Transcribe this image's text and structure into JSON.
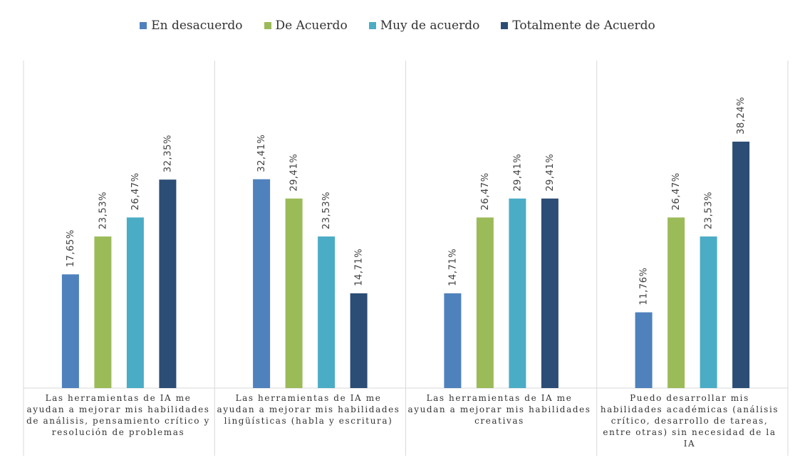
{
  "chart_data": {
    "type": "bar",
    "title": "",
    "xlabel": "",
    "ylabel": "",
    "ylim": [
      0,
      44
    ],
    "grid": false,
    "legend_position": "top",
    "categories": [
      "Las herramientas de IA me ayudan a mejorar mis habilidades de análisis, pensamiento crítico y resolución de problemas",
      "Las herramientas de IA me ayudan a mejorar mis habilidades lingüísticas (habla y escritura)",
      "Las herramientas de IA me ayudan a mejorar mis habilidades creativas",
      "Puedo desarrollar mis habilidades académicas (análisis crítico, desarrollo de tareas, entre otras) sin necesidad de la IA"
    ],
    "series": [
      {
        "name": "En desacuerdo",
        "color": "#4f81bd",
        "values": [
          17.65,
          32.41,
          14.71,
          11.76
        ],
        "labels": [
          "17,65%",
          "32,41%",
          "14,71%",
          "11,76%"
        ]
      },
      {
        "name": "De Acuerdo",
        "color": "#9bbb59",
        "values": [
          23.53,
          29.41,
          26.47,
          26.47
        ],
        "labels": [
          "23,53%",
          "29,41%",
          "26,47%",
          "26,47%"
        ]
      },
      {
        "name": "Muy de acuerdo",
        "color": "#4bacc6",
        "values": [
          26.47,
          23.53,
          29.41,
          23.53
        ],
        "labels": [
          "26,47%",
          "23,53%",
          "29,41%",
          "23,53%"
        ]
      },
      {
        "name": "Totalmente de Acuerdo",
        "color": "#2c4d75",
        "values": [
          32.35,
          14.71,
          29.41,
          38.24
        ],
        "labels": [
          "32,35%",
          "14,71%",
          "29,41%",
          "38,24%"
        ]
      }
    ]
  }
}
